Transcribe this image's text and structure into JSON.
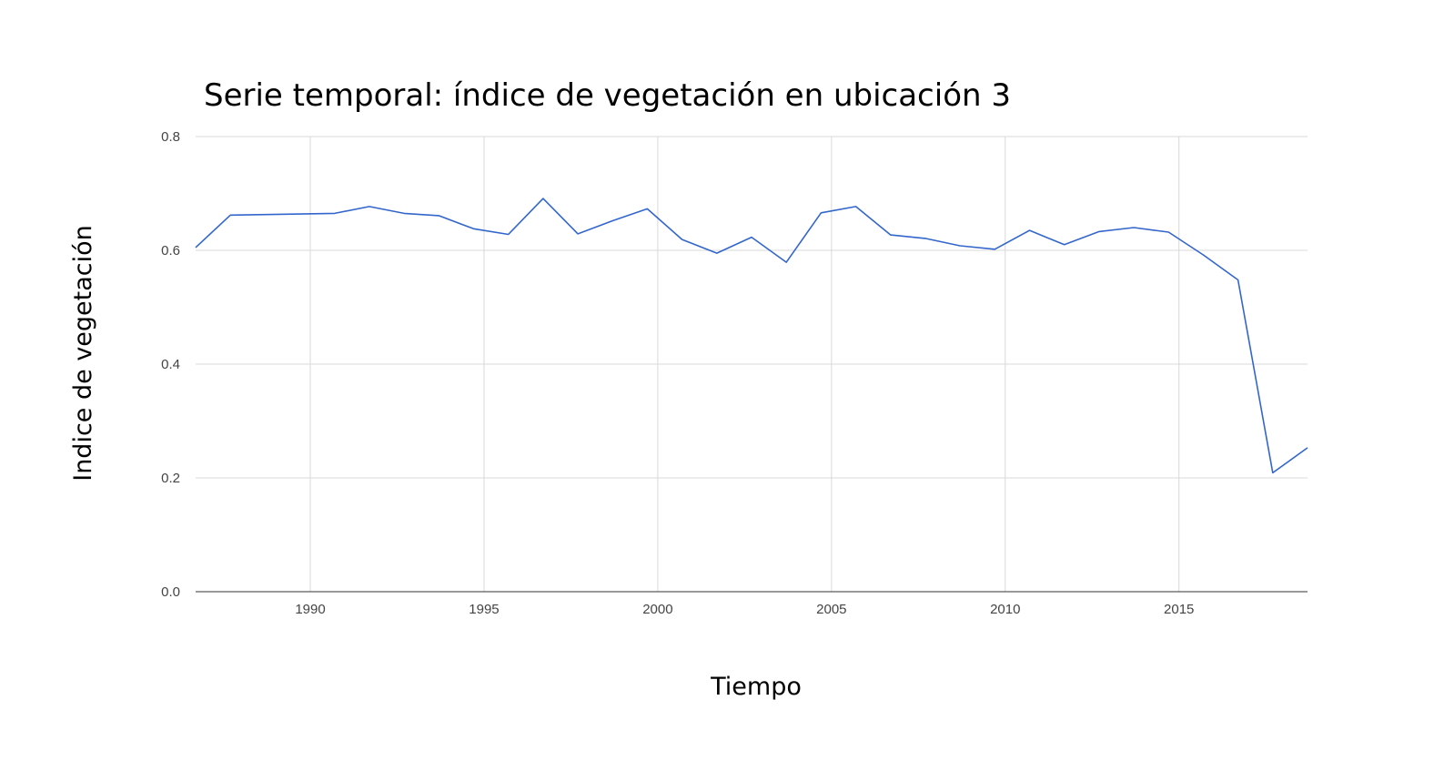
{
  "chart_data": {
    "type": "line",
    "title": "Serie temporal: índice de vegetación en ubicación 3",
    "xlabel": "Tiempo",
    "ylabel": "Indice de vegetación",
    "xlim": [
      1986.7,
      2018.7
    ],
    "ylim": [
      0,
      0.8
    ],
    "x_ticks": [
      1990,
      1995,
      2000,
      2005,
      2010,
      2015
    ],
    "y_ticks": [
      "0.0",
      "0.2",
      "0.4",
      "0.6",
      "0.8"
    ],
    "grid": true,
    "legend": "none",
    "series": [
      {
        "color": "#3366cc",
        "x": [
          1986.7,
          1987.7,
          1990.7,
          1991.7,
          1992.7,
          1993.7,
          1994.7,
          1995.7,
          1996.7,
          1997.7,
          1998.7,
          1999.7,
          2000.7,
          2001.7,
          2002.7,
          2003.7,
          2004.7,
          2005.7,
          2006.7,
          2007.7,
          2008.7,
          2009.7,
          2010.7,
          2011.7,
          2012.7,
          2013.7,
          2014.7,
          2015.7,
          2016.7,
          2017.7,
          2018.7
        ],
        "values": [
          0.605,
          0.662,
          0.665,
          0.677,
          0.665,
          0.661,
          0.638,
          0.628,
          0.691,
          0.629,
          0.652,
          0.673,
          0.619,
          0.595,
          0.623,
          0.579,
          0.666,
          0.677,
          0.627,
          0.621,
          0.608,
          0.602,
          0.635,
          0.61,
          0.633,
          0.64,
          0.632,
          0.592,
          0.548,
          0.209,
          0.253
        ]
      }
    ]
  }
}
